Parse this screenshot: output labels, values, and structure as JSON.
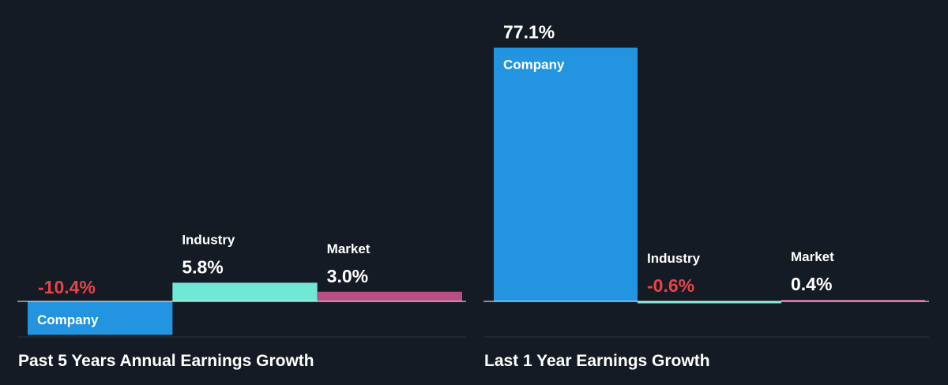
{
  "colors": {
    "background": "#151b24",
    "company": "#2394df",
    "industry": "#71e7d6",
    "market": "#b84e84",
    "positive_text": "#ffffff",
    "negative_text": "#e8434a",
    "baseline": "#ffffff",
    "divider": "#2c333d"
  },
  "chart_data": [
    {
      "type": "bar",
      "title": "Past 5 Years Annual Earnings Growth",
      "categories": [
        "Company",
        "Industry",
        "Market"
      ],
      "values": [
        -10.4,
        5.8,
        3.0
      ],
      "value_labels": [
        "-10.4%",
        "5.8%",
        "3.0%"
      ],
      "unit": "%"
    },
    {
      "type": "bar",
      "title": "Last 1 Year Earnings Growth",
      "categories": [
        "Company",
        "Industry",
        "Market"
      ],
      "values": [
        77.1,
        -0.6,
        0.4
      ],
      "value_labels": [
        "77.1%",
        "-0.6%",
        "0.4%"
      ],
      "unit": "%"
    }
  ]
}
